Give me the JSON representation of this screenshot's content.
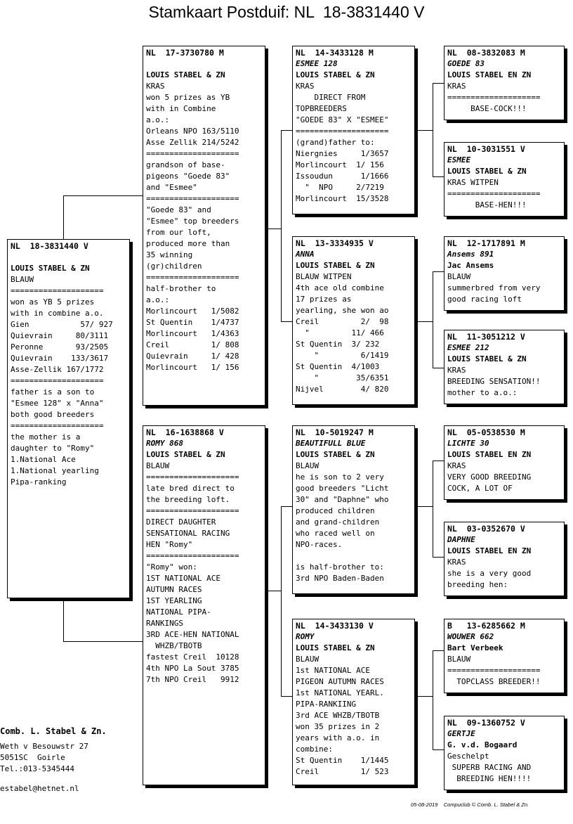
{
  "title": "Stamkaart Postduif: NL  18-3831440 V",
  "boxes": [
    {
      "id": "subject",
      "header": "NL  18-3831440 V",
      "name": "",
      "lines": [
        "",
        "LOUIS STABEL & ZN",
        "BLAUW",
        "====================",
        "won as YB 5 prizes",
        "with in combine a.o.",
        "Gien           57/ 927",
        "Quievrain     80/3111",
        "Peronne       93/2505",
        "Quievrain    133/3617",
        "Asse-Zellik 167/1772",
        "====================",
        "father is a son to",
        "\"Esmee 128\" x \"Anna\"",
        "both good breeders",
        "====================",
        "the mother is a",
        "daughter to \"Romy\"",
        "1.National Ace",
        "1.National yearling",
        "Pipa-ranking"
      ]
    },
    {
      "id": "father",
      "header": "NL  17-3730780 M",
      "name": "",
      "lines": [
        "",
        "LOUIS STABEL & ZN",
        "KRAS",
        "won 5 prizes as YB",
        "with in Combine",
        "a.o.:",
        "Orleans NPO 163/5110",
        "Asse Zellik 214/5242",
        "====================",
        "grandson of base-",
        "pigeons \"Goede 83\"",
        "and \"Esmee\"",
        "====================",
        "\"Goede 83\" and",
        "\"Esmee\" top breeders",
        "from our loft,",
        "produced more than",
        "35 winning",
        "(gr)children",
        "====================",
        "half-brother to",
        "a.o.:",
        "Morlincourt   1/5082",
        "St Quentin    1/4737",
        "Morlincourt   1/4363",
        "Creil         1/ 808",
        "Quievrain     1/ 428",
        "Morlincourt   1/ 156"
      ]
    },
    {
      "id": "mother",
      "header": "NL  16-1638868 V",
      "name": "ROMY 868",
      "lines": [
        "LOUIS STABEL & ZN",
        "BLAUW",
        "====================",
        "late bred direct to",
        "the breeding loft.",
        "====================",
        "DIRECT DAUGHTER",
        "SENSATIONAL RACING",
        "HEN \"Romy\"",
        "====================",
        "\"Romy\" won:",
        "1ST NATIONAL ACE",
        "AUTUMN RACES",
        "1ST YEARLING",
        "NATIONAL PIPA-",
        "RANKINGS",
        "3RD ACE-HEN NATIONAL",
        "  WHZB/TBOTB",
        "fastest Creil  10128",
        "4th NPO La Sout 3785",
        "7th NPO Creil   9912"
      ]
    },
    {
      "id": "ff",
      "header": "NL  14-3433128 M",
      "name": "ESMEE 128",
      "lines": [
        "LOUIS STABEL & ZN",
        "KRAS",
        "    DIRECT FROM",
        "TOPBREEDERS",
        "\"GOEDE 83\" X \"ESMEE\"",
        "====================",
        "(grand)father to:",
        "Niergnies     1/3657",
        "Morlincourt  1/ 156",
        "Issoudun      1/1666",
        "  \"  NPO     2/7219",
        "Morlincourt  15/3528"
      ]
    },
    {
      "id": "fm",
      "header": "NL  13-3334935 V",
      "name": "ANNA",
      "lines": [
        "LOUIS STABEL & ZN",
        "BLAUW WITPEN",
        "4th ace old combine",
        "17 prizes as",
        "yearling, she won ao",
        "Creil         2/  98",
        "  \"         11/ 466",
        "St Quentin  3/ 232",
        "    \"         6/1419",
        "St Quentin  4/1003",
        "    \"        35/6351",
        "Nijvel        4/ 820"
      ]
    },
    {
      "id": "mf",
      "header": "NL  10-5019247 M",
      "name": "BEAUTIFULL BLUE",
      "lines": [
        "LOUIS STABEL & ZN",
        "BLAUW",
        "he is son to 2 very",
        "good breeders \"Licht",
        "30\" and \"Daphne\" who",
        "produced children",
        "and grand-children",
        "who raced well on",
        "NPO-races.",
        "",
        "is half-brother to:",
        "3rd NPO Baden-Baden"
      ]
    },
    {
      "id": "mm",
      "header": "NL  14-3433130 V",
      "name": "ROMY",
      "lines": [
        "LOUIS STABEL & ZN",
        "BLAUW",
        "1st NATIONAL ACE",
        "PIGEON AUTUMN RACES",
        "1st NATIONAL YEARL.",
        "PIPA-RANKIING",
        "3rd ACE WHZB/TBOTB",
        "won 35 prizes in 2",
        "years with a.o. in",
        "combine:",
        "St Quentin    1/1445",
        "Creil         1/ 523"
      ]
    },
    {
      "id": "fff",
      "header": "NL  08-3832083 M",
      "name": "GOEDE 83",
      "lines": [
        "LOUIS STABEL EN ZN",
        "KRAS",
        "====================",
        "     BASE-COCK!!!"
      ]
    },
    {
      "id": "ffm",
      "header": "NL  10-3031551 V",
      "name": "ESMEE",
      "lines": [
        "LOUIS STABEL & ZN",
        "KRAS WITPEN",
        "====================",
        "      BASE-HEN!!!"
      ]
    },
    {
      "id": "fmf",
      "header": "NL  12-1717891 M",
      "name": "Ansems 891",
      "lines": [
        "Jac Ansems",
        "BLAUW",
        "summerbred from very",
        "good racing loft"
      ]
    },
    {
      "id": "fmm",
      "header": "NL  11-3051212 V",
      "name": "ESMEE 212",
      "lines": [
        "LOUIS STABEL & ZN",
        "KRAS",
        "BREEDING SENSATION!!",
        "mother to a.o.:"
      ]
    },
    {
      "id": "mff",
      "header": "NL  05-0538530 M",
      "name": "LICHTE 30",
      "lines": [
        "LOUIS STABEL EN ZN",
        "KRAS",
        "VERY GOOD BREEDING",
        "COCK, A LOT OF"
      ]
    },
    {
      "id": "mfm",
      "header": "NL  03-0352670 V",
      "name": "DAPHNE",
      "lines": [
        "LOUIS STABEL EN ZN",
        "KRAS",
        "she is a very good",
        "breeding hen:"
      ]
    },
    {
      "id": "mmf",
      "header": "B   13-6285662 M",
      "name": "WOUWER 662",
      "lines": [
        "Bart Verbeek",
        "BLAUW",
        "====================",
        "  TOPCLASS BREEDER!!"
      ]
    },
    {
      "id": "mmm",
      "header": "NL  09-1360752 V",
      "name": "GERTJE",
      "lines": [
        "G. v.d. Bogaard",
        "Geschelpt",
        " SUPERB RACING AND",
        "  BREEDING HEN!!!!"
      ]
    }
  ],
  "contact": {
    "name": "Comb. L. Stabel & Zn.",
    "address": "Weth v Besouwstr 27",
    "postal": "5051SC  Goirle",
    "tel": "Tel.:013-5345444",
    "email": "estabel@hetnet.nl"
  },
  "footer": "05-08-2019    Compuclub © Comb. L. Stabel & Zn."
}
